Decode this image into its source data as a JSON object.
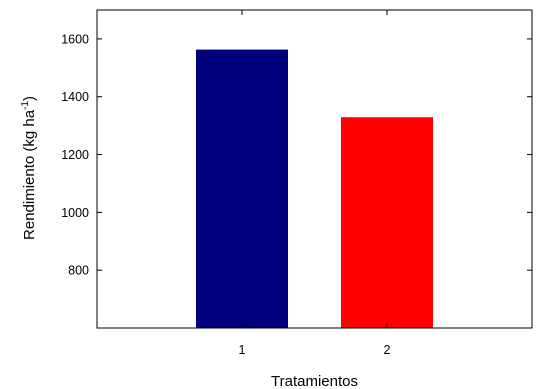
{
  "chart_data": {
    "type": "bar",
    "categories": [
      "1",
      "2"
    ],
    "values": [
      1563,
      1329
    ],
    "bar_colors": [
      "#00007f",
      "#ff0000"
    ],
    "xlabel": "Tratamientos",
    "ylabel": {
      "main": "Rendimiento  (kg ha",
      "superscript": "-1",
      "suffix": ")"
    },
    "ylim": [
      600,
      1700
    ],
    "yticks": [
      800,
      1000,
      1200,
      1400,
      1600
    ],
    "ytick_labels": [
      "800",
      "1000",
      "1200",
      "1400",
      "1600"
    ],
    "xlim": [
      0,
      3
    ],
    "grid": false
  }
}
